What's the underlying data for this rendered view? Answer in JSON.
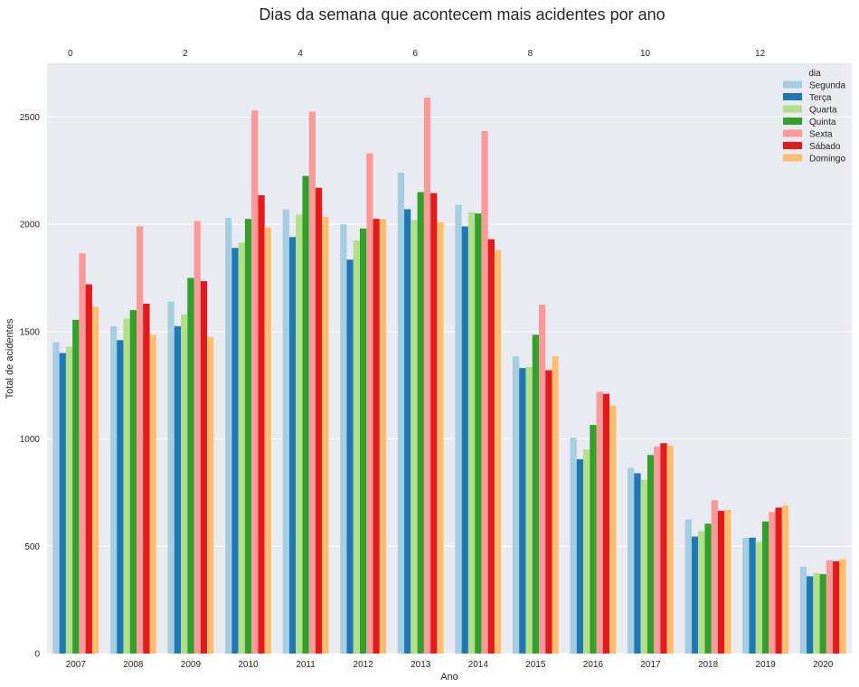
{
  "chart_data": {
    "type": "bar",
    "title": "Dias da semana que acontecem mais acidentes por ano",
    "xlabel": "Ano",
    "ylabel": "Total de acidentes",
    "ylim": [
      0,
      2750
    ],
    "yticks": [
      0,
      500,
      1000,
      1500,
      2000,
      2500
    ],
    "top_xticks": [
      0,
      2,
      4,
      6,
      8,
      10,
      12
    ],
    "grid": true,
    "legend": {
      "title": "dia",
      "placement": "top-right"
    },
    "categories": [
      "2007",
      "2008",
      "2009",
      "2010",
      "2011",
      "2012",
      "2013",
      "2014",
      "2015",
      "2016",
      "2017",
      "2018",
      "2019",
      "2020"
    ],
    "series": [
      {
        "name": "Segunda",
        "color": "#a6cee3",
        "values": [
          1450,
          1525,
          1640,
          2030,
          2070,
          2000,
          2240,
          2090,
          1385,
          1005,
          865,
          625,
          540,
          405
        ]
      },
      {
        "name": "Terça",
        "color": "#1f78b4",
        "values": [
          1400,
          1460,
          1525,
          1890,
          1940,
          1835,
          2070,
          1990,
          1330,
          905,
          840,
          545,
          540,
          360
        ]
      },
      {
        "name": "Quarta",
        "color": "#b2df8a",
        "values": [
          1430,
          1560,
          1580,
          1915,
          2045,
          1925,
          2020,
          2055,
          1335,
          950,
          810,
          570,
          520,
          375
        ]
      },
      {
        "name": "Quinta",
        "color": "#33a02c",
        "values": [
          1555,
          1600,
          1750,
          2025,
          2225,
          1980,
          2150,
          2050,
          1485,
          1065,
          925,
          605,
          615,
          370
        ]
      },
      {
        "name": "Sexta",
        "color": "#fb9a99",
        "values": [
          1865,
          1990,
          2015,
          2530,
          2525,
          2330,
          2590,
          2435,
          1625,
          1220,
          965,
          715,
          660,
          435
        ]
      },
      {
        "name": "Sábado",
        "color": "#e31a1c",
        "values": [
          1720,
          1630,
          1735,
          2135,
          2170,
          2025,
          2145,
          1930,
          1320,
          1210,
          980,
          665,
          680,
          430
        ]
      },
      {
        "name": "Domingo",
        "color": "#fdbf6f",
        "values": [
          1615,
          1485,
          1475,
          1985,
          2035,
          2025,
          2010,
          1880,
          1385,
          1155,
          970,
          670,
          690,
          440
        ]
      }
    ]
  }
}
